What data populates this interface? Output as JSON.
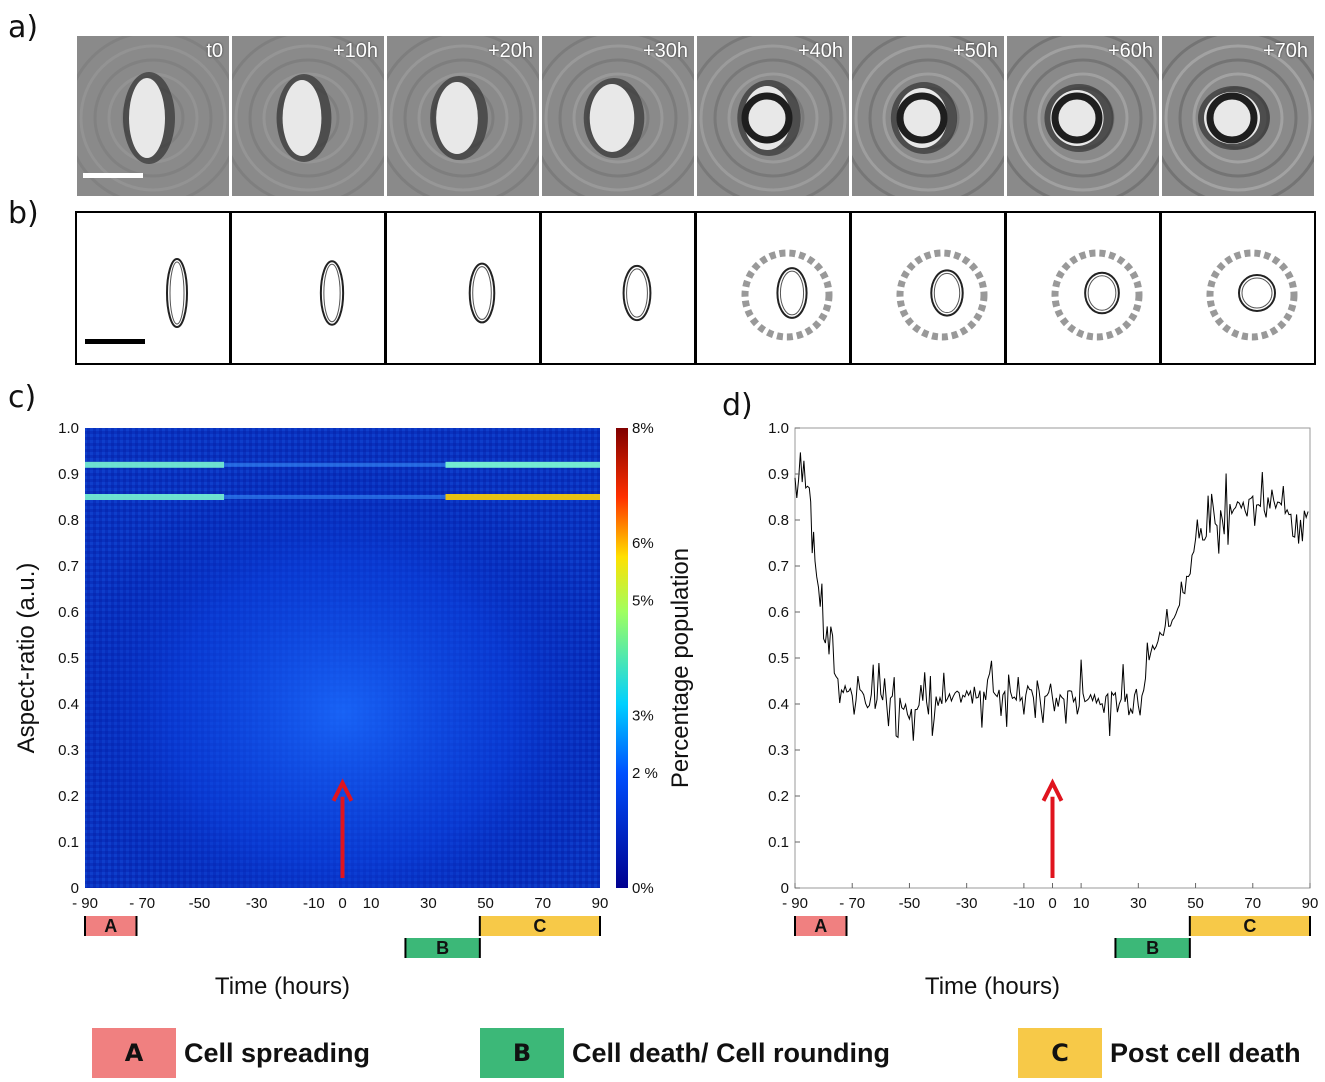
{
  "panels": {
    "a": "a)",
    "b": "b)",
    "c": "c)",
    "d": "d)"
  },
  "frames": [
    "t0",
    "+10h",
    "+20h",
    "+30h",
    "+40h",
    "+50h",
    "+60h",
    "+70h"
  ],
  "colors": {
    "A": "#f08080",
    "B": "#3cb878",
    "C": "#f7c948",
    "arrow": "#e0141e"
  },
  "phases": [
    {
      "key": "A",
      "label": "A",
      "desc": "Cell spreading",
      "start": -90,
      "end": -72
    },
    {
      "key": "B",
      "label": "B",
      "desc": "Cell death/ Cell rounding",
      "start": 22,
      "end": 48
    },
    {
      "key": "C",
      "label": "C",
      "desc": "Post cell death",
      "start": 48,
      "end": 90
    }
  ],
  "chart_data": [
    {
      "type": "heatmap",
      "panel": "c)",
      "xlabel": "Time (hours)",
      "ylabel": "Aspect-ratio (a.u.)",
      "colorbar_label": "Percentage population",
      "xticks": [
        -90,
        -70,
        -50,
        -30,
        -10,
        0,
        10,
        30,
        50,
        70,
        90
      ],
      "xtick_labels": [
        "- 90",
        "- 70",
        "-50",
        "-30",
        "-10",
        "0",
        "10",
        "30",
        "50",
        "70",
        "90"
      ],
      "yticks": [
        0,
        0.1,
        0.2,
        0.3,
        0.4,
        0.5,
        0.6,
        0.7,
        0.8,
        0.9,
        1.0
      ],
      "ytick_labels": [
        "0",
        "0.1",
        "0.2",
        "0.3",
        "0.4",
        "0.5",
        "0.6",
        "0.7",
        "0.8",
        "0.9",
        "1.0"
      ],
      "colorbar_ticks": [
        0,
        2,
        3,
        5,
        6,
        8
      ],
      "colorbar_tick_labels": [
        "0%",
        "2 %",
        "3%",
        "5%",
        "6%",
        "8%"
      ],
      "xlim": [
        -90,
        90
      ],
      "ylim": [
        0,
        1.0
      ],
      "bright_bands": [
        0.85,
        0.92
      ],
      "arrow_at": {
        "x": 0,
        "y_tip": 0.22
      }
    },
    {
      "type": "line",
      "panel": "d)",
      "xlabel": "Time (hours)",
      "xticks": [
        -90,
        -70,
        -50,
        -30,
        -10,
        0,
        10,
        30,
        50,
        70,
        90
      ],
      "xtick_labels": [
        "- 90",
        "- 70",
        "-50",
        "-30",
        "-10",
        "0",
        "10",
        "30",
        "50",
        "70",
        "90"
      ],
      "yticks": [
        0,
        0.1,
        0.2,
        0.3,
        0.4,
        0.5,
        0.6,
        0.7,
        0.8,
        0.9,
        1.0
      ],
      "ytick_labels": [
        "0",
        "0.1",
        "0.2",
        "0.3",
        "0.4",
        "0.5",
        "0.6",
        "0.7",
        "0.8",
        "0.9",
        "1.0"
      ],
      "xlim": [
        -90,
        90
      ],
      "ylim": [
        0,
        1.0
      ],
      "x": [
        -90,
        -85,
        -83,
        -80,
        -75,
        -70,
        -60,
        -50,
        -40,
        -30,
        -20,
        -10,
        0,
        10,
        20,
        30,
        35,
        40,
        45,
        50,
        55,
        60,
        70,
        80,
        90
      ],
      "y": [
        0.89,
        0.88,
        0.72,
        0.55,
        0.45,
        0.42,
        0.41,
        0.4,
        0.4,
        0.42,
        0.43,
        0.42,
        0.41,
        0.42,
        0.41,
        0.42,
        0.52,
        0.57,
        0.62,
        0.75,
        0.78,
        0.82,
        0.84,
        0.83,
        0.8
      ],
      "arrow_at": {
        "x": 0,
        "y_tip": 0.22
      }
    }
  ]
}
